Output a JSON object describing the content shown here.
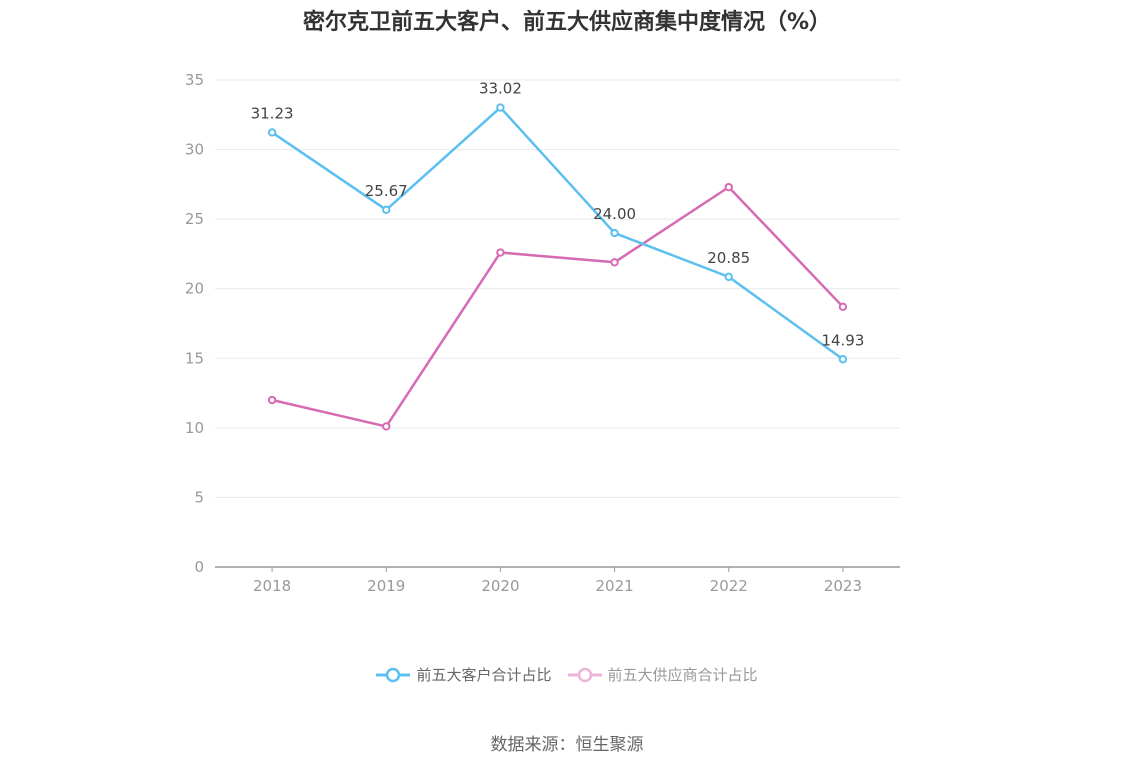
{
  "chart_data": {
    "type": "line",
    "title": "密尔克卫前五大客户、前五大供应商集中度情况（%）",
    "categories": [
      "2018",
      "2019",
      "2020",
      "2021",
      "2022",
      "2023"
    ],
    "ylim": [
      0,
      35
    ],
    "yticks": [
      0,
      5,
      10,
      15,
      20,
      25,
      30,
      35
    ],
    "grid": true,
    "legend_position": "bottom",
    "series": [
      {
        "name": "前五大客户合计占比",
        "color": "#5bc0ef",
        "values": [
          31.23,
          25.67,
          33.02,
          24.0,
          20.85,
          14.93
        ],
        "labels": [
          "31.23",
          "25.67",
          "33.02",
          "24.00",
          "20.85",
          "14.93"
        ]
      },
      {
        "name": "前五大供应商合计占比",
        "color": "#d66bb4",
        "legend_color": "#eeb3da",
        "values": [
          12.0,
          10.1,
          22.6,
          21.9,
          27.3,
          18.7
        ]
      }
    ]
  },
  "source": "数据来源：恒生聚源"
}
